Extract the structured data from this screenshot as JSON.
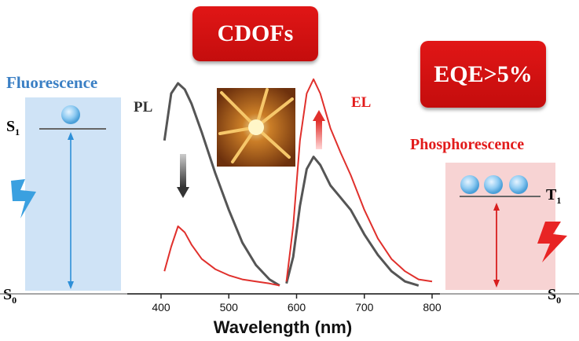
{
  "boxes": {
    "cdofs": "CDOFs",
    "eqe": "EQE>5%"
  },
  "left_panel": {
    "title": "Fluorescence",
    "upper_level": "S",
    "upper_sub": "1",
    "lower_level": "S",
    "lower_sub": "0",
    "color": "#3a7fc4"
  },
  "right_panel": {
    "title": "Phosphorescence",
    "upper_level": "T",
    "upper_sub": "1",
    "lower_level": "S",
    "lower_sub": "0",
    "color": "#e21b1b"
  },
  "chart_data": {
    "type": "line",
    "xlabel": "Wavelength (nm)",
    "ylabel": "",
    "xlim": [
      380,
      800
    ],
    "xticks": [
      400,
      500,
      600,
      700,
      800
    ],
    "grid": false,
    "curve_labels": [
      "PL",
      "EL"
    ],
    "series": [
      {
        "color": "#555555",
        "x": [
          405,
          415,
          425,
          435,
          445,
          460,
          480,
          500,
          520,
          540,
          560,
          575
        ],
        "y": [
          0.72,
          0.95,
          1.0,
          0.97,
          0.9,
          0.76,
          0.56,
          0.38,
          0.22,
          0.11,
          0.04,
          0.01
        ]
      },
      {
        "color": "#555555",
        "x": [
          585,
          595,
          605,
          615,
          625,
          635,
          650,
          665,
          680,
          700,
          720,
          740,
          760,
          780
        ],
        "y": [
          0.02,
          0.15,
          0.4,
          0.58,
          0.64,
          0.6,
          0.5,
          0.44,
          0.38,
          0.26,
          0.16,
          0.08,
          0.03,
          0.01
        ]
      },
      {
        "color": "#e0302c",
        "x": [
          405,
          415,
          425,
          435,
          445,
          460,
          480,
          500,
          520,
          540,
          560,
          575
        ],
        "y": [
          0.08,
          0.2,
          0.3,
          0.27,
          0.21,
          0.14,
          0.09,
          0.06,
          0.04,
          0.03,
          0.02,
          0.01
        ]
      },
      {
        "color": "#e0302c",
        "x": [
          585,
          595,
          605,
          615,
          625,
          635,
          650,
          665,
          680,
          700,
          720,
          740,
          760,
          780,
          800
        ],
        "y": [
          0.03,
          0.3,
          0.72,
          0.95,
          1.02,
          0.95,
          0.78,
          0.66,
          0.55,
          0.38,
          0.24,
          0.14,
          0.08,
          0.04,
          0.03
        ]
      }
    ]
  }
}
